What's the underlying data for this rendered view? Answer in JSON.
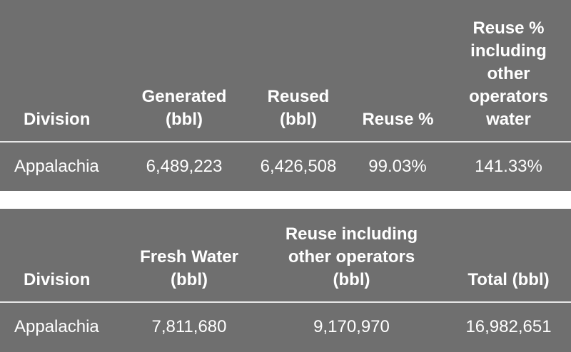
{
  "table1": {
    "headers": [
      "Division",
      "Generated (bbl)",
      "Reused (bbl)",
      "Reuse %",
      "Reuse % including other operators water"
    ],
    "rows": [
      [
        "Appalachia",
        "6,489,223",
        "6,426,508",
        "99.03%",
        "141.33%"
      ]
    ]
  },
  "table2": {
    "headers": [
      "Division",
      "Fresh Water (bbl)",
      "Reuse including other operators (bbl)",
      "Total (bbl)"
    ],
    "rows": [
      [
        "Appalachia",
        "7,811,680",
        "9,170,970",
        "16,982,651"
      ]
    ]
  },
  "colors": {
    "table_bg": "#6f6f6f",
    "text": "#ffffff",
    "separator": "#e8e8e8"
  }
}
